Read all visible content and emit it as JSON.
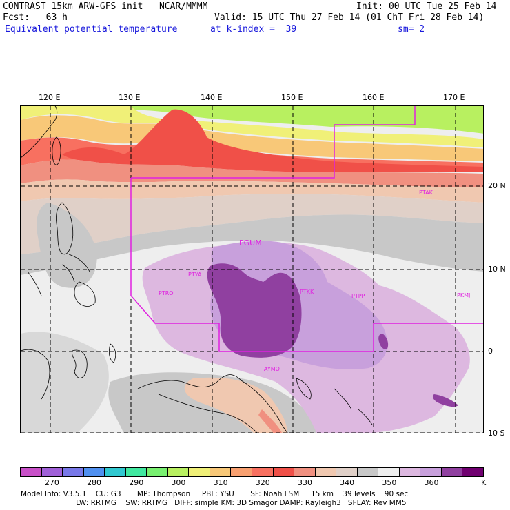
{
  "header": {
    "line1_left": "CONTRAST 15km ARW-GFS init   NCAR/MMMM",
    "line1_right": "Init: 00 UTC Tue 25 Feb 14",
    "line2_left": "Fcst:   63 h",
    "line2_right": "Valid: 15 UTC Thu 27 Feb 14 (01 ChT Fri 28 Feb 14)",
    "field": "Equivalent potential temperature",
    "level": "at k-index =  39",
    "smooth": "sm= 2"
  },
  "map": {
    "lon_labels": [
      "120 E",
      "130 E",
      "140 E",
      "150 E",
      "160 E",
      "170 E"
    ],
    "lat_labels": [
      "20 N",
      "10 N",
      "0",
      "10 S"
    ],
    "stations": [
      "PTAK",
      "PGUM",
      "PTYA",
      "PTRO",
      "PTKK",
      "PTPP",
      "PKMJ",
      "AYMO"
    ]
  },
  "colorbar": {
    "colors": [
      "#c850c8",
      "#a060d8",
      "#7878e8",
      "#5090f0",
      "#30c8d0",
      "#40e8a0",
      "#78f070",
      "#b8f060",
      "#f0f078",
      "#f8c878",
      "#f8a070",
      "#f87060",
      "#f05048",
      "#f09080",
      "#f0c8b0",
      "#e0d0c8",
      "#c8c8c8",
      "#eeeeee",
      "#ddb8e0",
      "#c8a0dc",
      "#9040a0",
      "#700070"
    ],
    "labels": [
      "270",
      "280",
      "290",
      "300",
      "310",
      "320",
      "330",
      "340",
      "350",
      "360"
    ],
    "unit": "K"
  },
  "model_info": {
    "line1": "Model Info: V3.5.1    CU: G3       MP: Thompson     PBL: YSU       SF: Noah LSM     15 km    39 levels    90 sec",
    "line2": "                        LW: RRTMG    SW: RRTMG   DIFF: simple KM: 3D Smagor DAMP: Rayleigh3   SFLAY: Rev MM5"
  }
}
